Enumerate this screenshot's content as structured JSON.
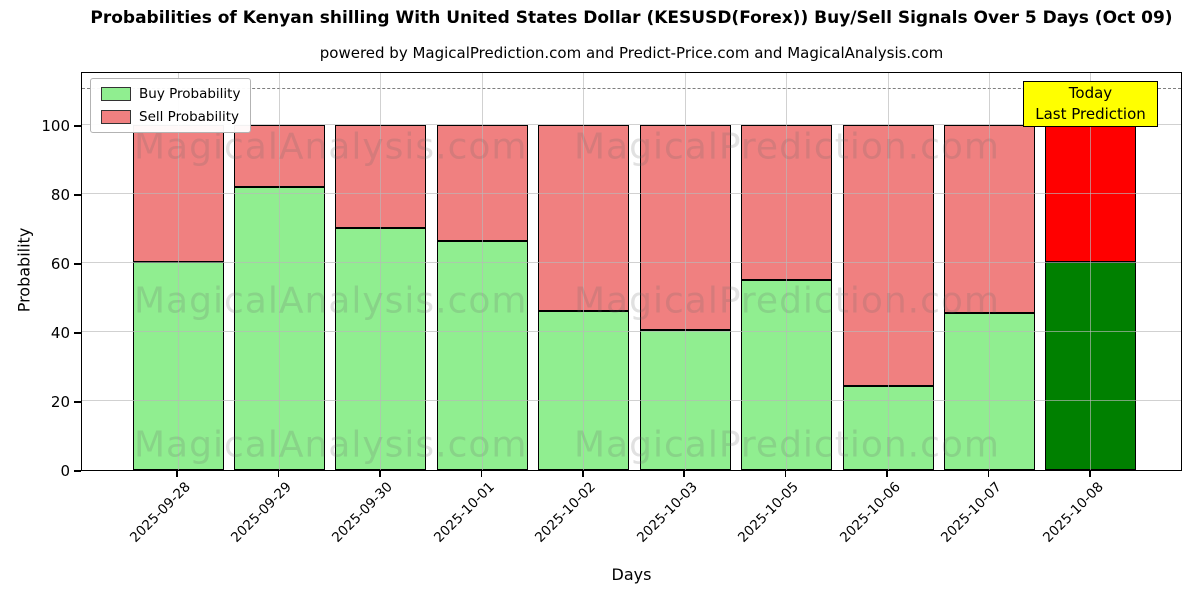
{
  "chart_data": {
    "type": "bar",
    "stacked": true,
    "title": "Probabilities of Kenyan shilling With United States Dollar (KESUSD(Forex)) Buy/Sell Signals Over 5 Days (Oct 09)",
    "subtitle": "powered by MagicalPrediction.com and Predict-Price.com and MagicalAnalysis.com",
    "xlabel": "Days",
    "ylabel": "Probability",
    "ylim": [
      0,
      115.7
    ],
    "yticks": [
      0,
      20,
      40,
      60,
      80,
      100
    ],
    "grid": true,
    "dashed_threshold_y": 110.5,
    "categories": [
      "2025-09-28",
      "2025-09-29",
      "2025-09-30",
      "2025-10-01",
      "2025-10-02",
      "2025-10-03",
      "2025-10-05",
      "2025-10-06",
      "2025-10-07",
      "2025-10-08"
    ],
    "series": [
      {
        "name": "Buy Probability",
        "values": [
          60.5,
          82.5,
          70.5,
          66.5,
          46,
          40.5,
          55,
          24,
          45.5,
          60.5
        ],
        "color": "#90EE90",
        "last_bar_color": "#008000"
      },
      {
        "name": "Sell Probability",
        "values": [
          39.5,
          17.5,
          29.5,
          33.5,
          54,
          59.5,
          45,
          76,
          54.5,
          39.5
        ],
        "color": "#F08080",
        "last_bar_color": "#FF0000"
      }
    ],
    "legend": {
      "position": "upper left",
      "entries": [
        "Buy Probability",
        "Sell Probability"
      ]
    },
    "annotation_box": {
      "line1": "Today",
      "line2": "Last Prediction",
      "bg_color": "#FFFF00",
      "border_color": "#000000"
    },
    "watermarks": {
      "left_text": "MagicalAnalysis.com",
      "right_text": "MagicalPrediction.com"
    }
  },
  "colors": {
    "buy": "#90EE90",
    "sell": "#F08080",
    "buy_today": "#008000",
    "sell_today": "#FF0000",
    "annotation_bg": "#FFFF00",
    "grid": "#b9b9b9",
    "dashed_line": "#7f7f7f"
  }
}
